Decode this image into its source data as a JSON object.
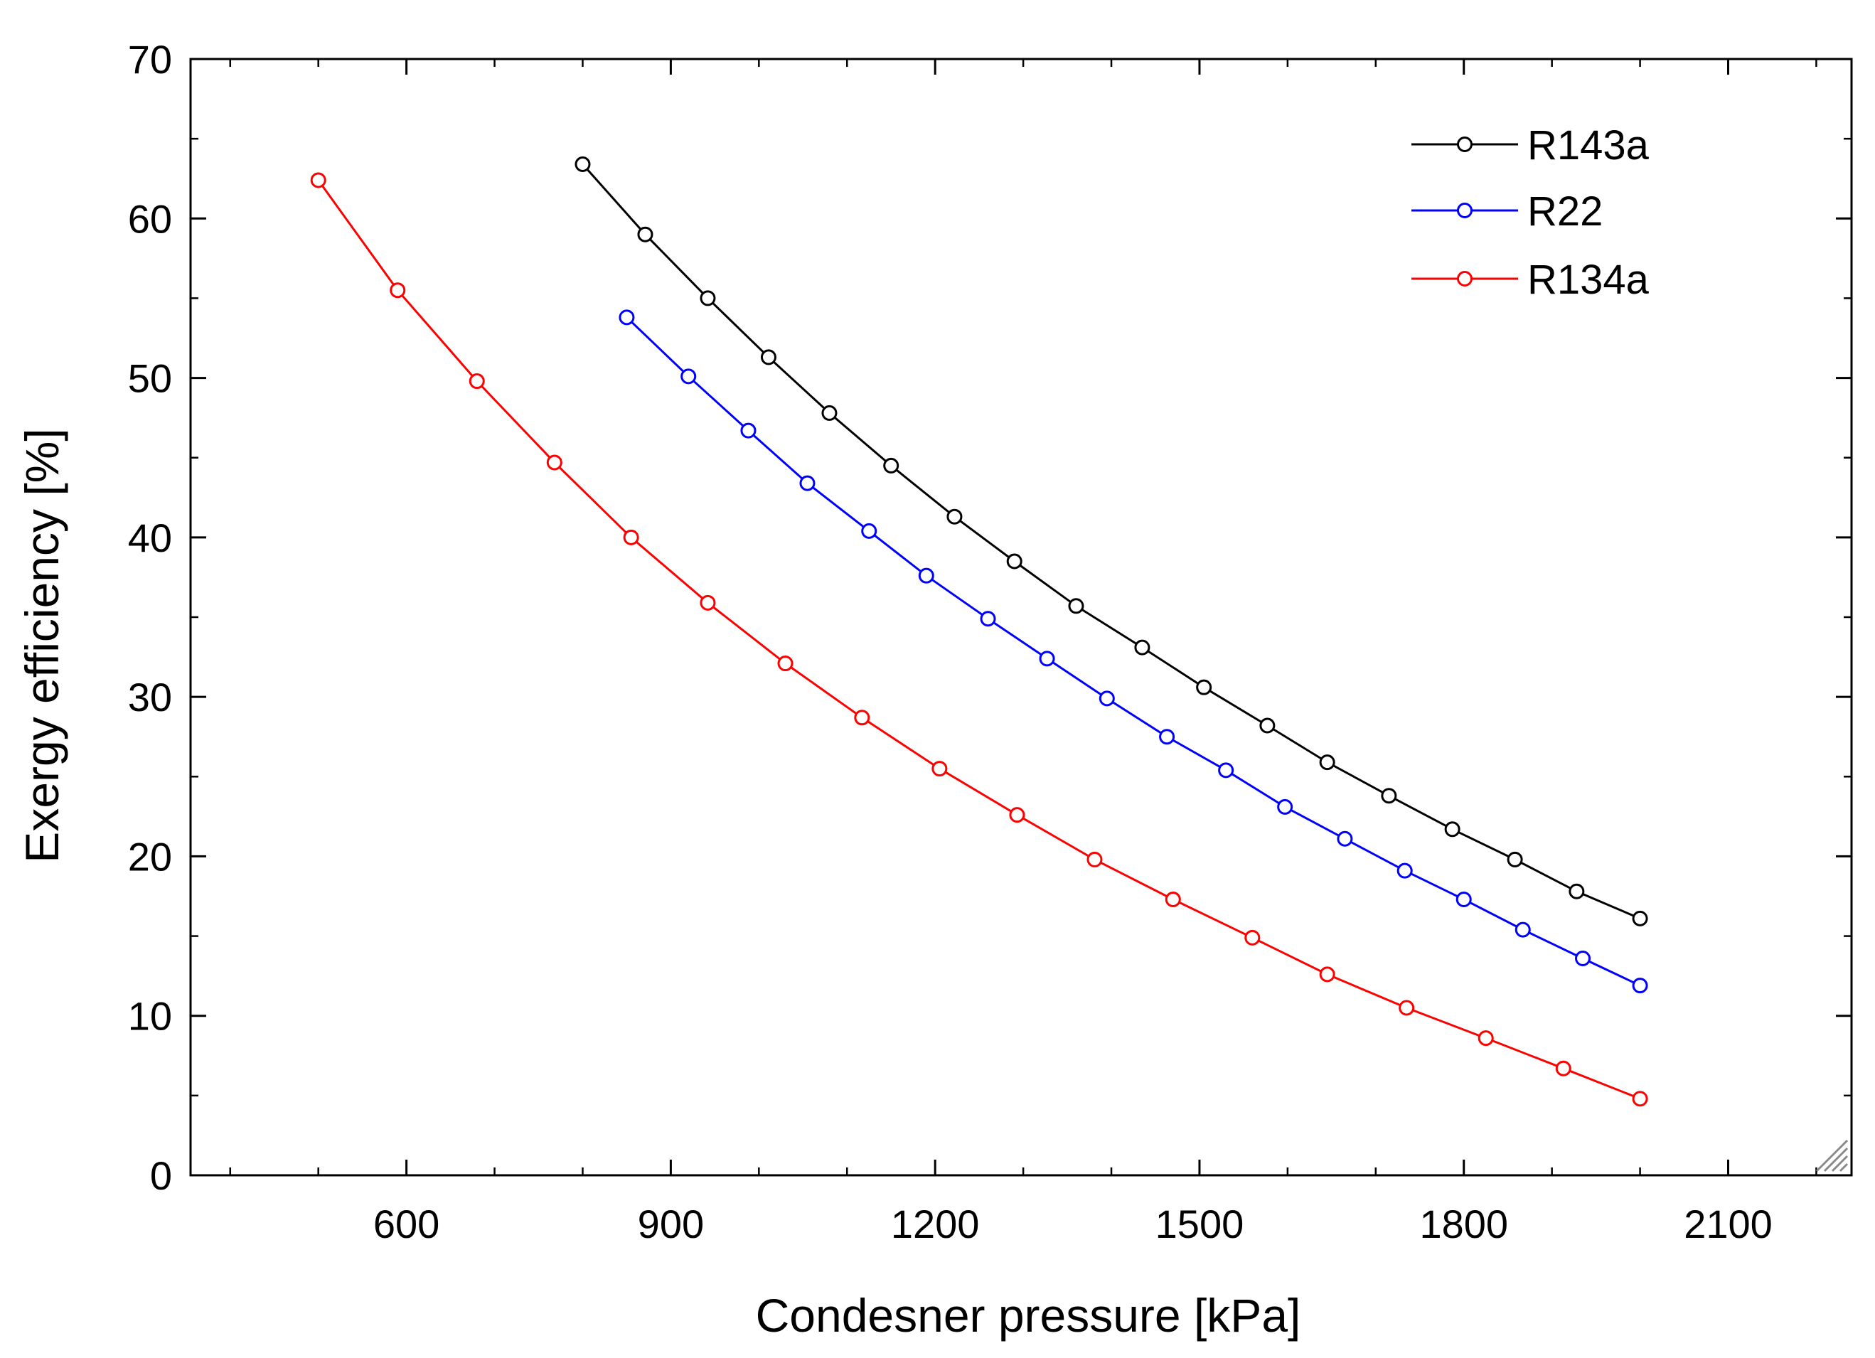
{
  "chart_data": {
    "type": "line",
    "title": "",
    "xlabel": "Condesner pressure [kPa]",
    "ylabel": "Exergy efficiency [%]",
    "xlim": [
      355,
      2240
    ],
    "ylim": [
      0,
      70
    ],
    "xticks": [
      600,
      900,
      1200,
      1500,
      1800,
      2100
    ],
    "xtick_labels": [
      "600",
      "900",
      "1200",
      "1500",
      "1800",
      "2100"
    ],
    "yticks": [
      0,
      10,
      20,
      30,
      40,
      50,
      60,
      70
    ],
    "ytick_labels": [
      "0",
      "10",
      "20",
      "30",
      "40",
      "50",
      "60",
      "70"
    ],
    "grid": false,
    "legend_position": "top-right",
    "series": [
      {
        "name": "R143a",
        "color": "#000000",
        "marker": "circle-open",
        "x": [
          800,
          871,
          942,
          1011,
          1080,
          1150,
          1222,
          1290,
          1360,
          1435,
          1505,
          1577,
          1645,
          1715,
          1787,
          1858,
          1928,
          2000
        ],
        "y": [
          63.4,
          59.0,
          55.0,
          51.3,
          47.8,
          44.5,
          41.3,
          38.5,
          35.7,
          33.1,
          30.6,
          28.2,
          25.9,
          23.8,
          21.7,
          19.8,
          17.8,
          16.1
        ]
      },
      {
        "name": "R22",
        "color": "#0000ff",
        "marker": "circle-open",
        "x": [
          850,
          920,
          988,
          1055,
          1125,
          1190,
          1260,
          1327,
          1395,
          1463,
          1530,
          1597,
          1665,
          1733,
          1800,
          1867,
          1935,
          2000
        ],
        "y": [
          53.8,
          50.1,
          46.7,
          43.4,
          40.4,
          37.6,
          34.9,
          32.4,
          29.9,
          27.5,
          25.4,
          23.1,
          21.1,
          19.1,
          17.3,
          15.4,
          13.6,
          11.9
        ]
      },
      {
        "name": "R134a",
        "color": "#ff0000",
        "marker": "circle-open",
        "x": [
          500,
          590,
          680,
          768,
          855,
          942,
          1030,
          1117,
          1205,
          1293,
          1381,
          1470,
          1560,
          1645,
          1735,
          1825,
          1913,
          2000
        ],
        "y": [
          62.4,
          55.5,
          49.8,
          44.7,
          40.0,
          35.9,
          32.1,
          28.7,
          25.5,
          22.6,
          19.8,
          17.3,
          14.9,
          12.6,
          10.5,
          8.6,
          6.7,
          4.8
        ]
      }
    ]
  }
}
